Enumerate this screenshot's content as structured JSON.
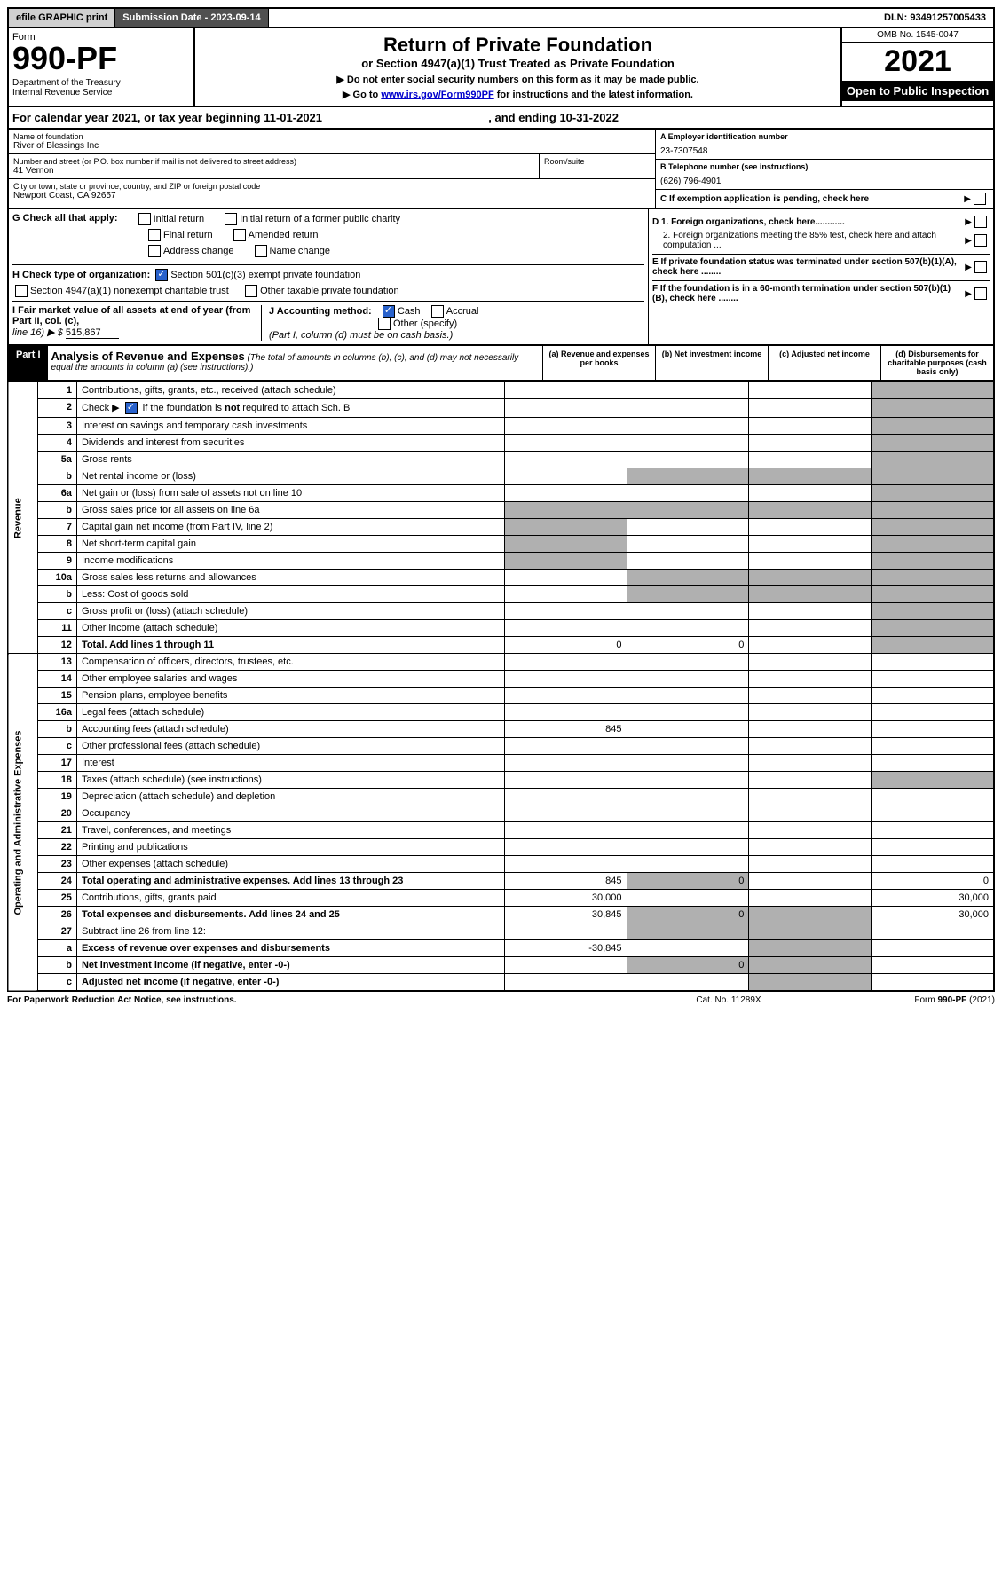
{
  "topbar": {
    "efile": "efile GRAPHIC print",
    "subdate_label": "Submission Date - ",
    "subdate": "2023-09-14",
    "dln_label": "DLN: ",
    "dln": "93491257005433"
  },
  "header": {
    "form_label": "Form",
    "form_no": "990-PF",
    "dept": "Department of the Treasury\nInternal Revenue Service",
    "title": "Return of Private Foundation",
    "subtitle": "or Section 4947(a)(1) Trust Treated as Private Foundation",
    "instr1": "▶ Do not enter social security numbers on this form as it may be made public.",
    "instr2_prefix": "▶ Go to ",
    "instr2_link": "www.irs.gov/Form990PF",
    "instr2_suffix": " for instructions and the latest information.",
    "omb": "OMB No. 1545-0047",
    "year": "2021",
    "open": "Open to Public Inspection"
  },
  "calyear": {
    "prefix": "For calendar year 2021, or tax year beginning ",
    "begin": "11-01-2021",
    "mid": " , and ending ",
    "end": "10-31-2022"
  },
  "info": {
    "name_label": "Name of foundation",
    "name": "River of Blessings Inc",
    "addr_label": "Number and street (or P.O. box number if mail is not delivered to street address)",
    "addr": "41 Vernon",
    "room_label": "Room/suite",
    "city_label": "City or town, state or province, country, and ZIP or foreign postal code",
    "city": "Newport Coast, CA  92657",
    "ein_label": "A Employer identification number",
    "ein": "23-7307548",
    "phone_label": "B Telephone number (see instructions)",
    "phone": "(626) 796-4901",
    "pending_label": "C If exemption application is pending, check here"
  },
  "g": {
    "label": "G Check all that apply:",
    "opts": [
      "Initial return",
      "Initial return of a former public charity",
      "Final return",
      "Amended return",
      "Address change",
      "Name change"
    ]
  },
  "h": {
    "label": "H Check type of organization:",
    "opt1": "Section 501(c)(3) exempt private foundation",
    "opt2": "Section 4947(a)(1) nonexempt charitable trust",
    "opt3": "Other taxable private foundation"
  },
  "d": {
    "d1": "D 1. Foreign organizations, check here............",
    "d2": "2. Foreign organizations meeting the 85% test, check here and attach computation ...",
    "e": "E  If private foundation status was terminated under section 507(b)(1)(A), check here ........",
    "f": "F  If the foundation is in a 60-month termination under section 507(b)(1)(B), check here ........"
  },
  "i": {
    "label": "I Fair market value of all assets at end of year (from Part II, col. (c),",
    "line": "line 16) ▶ $",
    "val": "515,867"
  },
  "j": {
    "label": "J Accounting method:",
    "cash": "Cash",
    "accrual": "Accrual",
    "other": "Other (specify)",
    "note": "(Part I, column (d) must be on cash basis.)"
  },
  "part1": {
    "label": "Part I",
    "title": "Analysis of Revenue and Expenses",
    "note": "(The total of amounts in columns (b), (c), and (d) may not necessarily equal the amounts in column (a) (see instructions).)",
    "cols": {
      "a": "(a) Revenue and expenses per books",
      "b": "(b) Net investment income",
      "c": "(c) Adjusted net income",
      "d": "(d) Disbursements for charitable purposes (cash basis only)"
    }
  },
  "sides": {
    "rev": "Revenue",
    "exp": "Operating and Administrative Expenses"
  },
  "rows": [
    {
      "n": "1",
      "d": "Contributions, gifts, grants, etc., received (attach schedule)"
    },
    {
      "n": "2",
      "d": "Check ▶ ☑ if the foundation is not required to attach Sch. B",
      "checked": true
    },
    {
      "n": "3",
      "d": "Interest on savings and temporary cash investments"
    },
    {
      "n": "4",
      "d": "Dividends and interest from securities"
    },
    {
      "n": "5a",
      "d": "Gross rents"
    },
    {
      "n": "b",
      "d": "Net rental income or (loss)"
    },
    {
      "n": "6a",
      "d": "Net gain or (loss) from sale of assets not on line 10"
    },
    {
      "n": "b",
      "d": "Gross sales price for all assets on line 6a"
    },
    {
      "n": "7",
      "d": "Capital gain net income (from Part IV, line 2)"
    },
    {
      "n": "8",
      "d": "Net short-term capital gain"
    },
    {
      "n": "9",
      "d": "Income modifications"
    },
    {
      "n": "10a",
      "d": "Gross sales less returns and allowances"
    },
    {
      "n": "b",
      "d": "Less: Cost of goods sold"
    },
    {
      "n": "c",
      "d": "Gross profit or (loss) (attach schedule)"
    },
    {
      "n": "11",
      "d": "Other income (attach schedule)"
    },
    {
      "n": "12",
      "d": "Total. Add lines 1 through 11",
      "bold": true,
      "a": "0",
      "b": "0"
    },
    {
      "n": "13",
      "d": "Compensation of officers, directors, trustees, etc."
    },
    {
      "n": "14",
      "d": "Other employee salaries and wages"
    },
    {
      "n": "15",
      "d": "Pension plans, employee benefits"
    },
    {
      "n": "16a",
      "d": "Legal fees (attach schedule)"
    },
    {
      "n": "b",
      "d": "Accounting fees (attach schedule)",
      "a": "845"
    },
    {
      "n": "c",
      "d": "Other professional fees (attach schedule)"
    },
    {
      "n": "17",
      "d": "Interest"
    },
    {
      "n": "18",
      "d": "Taxes (attach schedule) (see instructions)"
    },
    {
      "n": "19",
      "d": "Depreciation (attach schedule) and depletion"
    },
    {
      "n": "20",
      "d": "Occupancy"
    },
    {
      "n": "21",
      "d": "Travel, conferences, and meetings"
    },
    {
      "n": "22",
      "d": "Printing and publications"
    },
    {
      "n": "23",
      "d": "Other expenses (attach schedule)"
    },
    {
      "n": "24",
      "d": "Total operating and administrative expenses. Add lines 13 through 23",
      "bold": true,
      "a": "845",
      "b": "0",
      "dd": "0"
    },
    {
      "n": "25",
      "d": "Contributions, gifts, grants paid",
      "a": "30,000",
      "dd": "30,000"
    },
    {
      "n": "26",
      "d": "Total expenses and disbursements. Add lines 24 and 25",
      "bold": true,
      "a": "30,845",
      "b": "0",
      "dd": "30,000"
    },
    {
      "n": "27",
      "d": "Subtract line 26 from line 12:"
    },
    {
      "n": "a",
      "d": "Excess of revenue over expenses and disbursements",
      "bold": true,
      "a": "-30,845"
    },
    {
      "n": "b",
      "d": "Net investment income (if negative, enter -0-)",
      "bold": true,
      "b": "0"
    },
    {
      "n": "c",
      "d": "Adjusted net income (if negative, enter -0-)",
      "bold": true
    }
  ],
  "grey_cells": {
    "col_d_grey_rows": [
      "1",
      "2",
      "3",
      "4",
      "5a",
      "b5",
      "6a",
      "b6",
      "7",
      "8",
      "9",
      "10a",
      "b10",
      "c10",
      "11",
      "12",
      "19"
    ],
    "col_c_grey_rows": [
      "27",
      "a",
      "b",
      "c"
    ],
    "col_b_grey_rows": [
      "25",
      "27",
      "a",
      "c"
    ],
    "col_a_grey_rows": []
  },
  "footer": {
    "left": "For Paperwork Reduction Act Notice, see instructions.",
    "mid": "Cat. No. 11289X",
    "right": "Form 990-PF (2021)"
  }
}
